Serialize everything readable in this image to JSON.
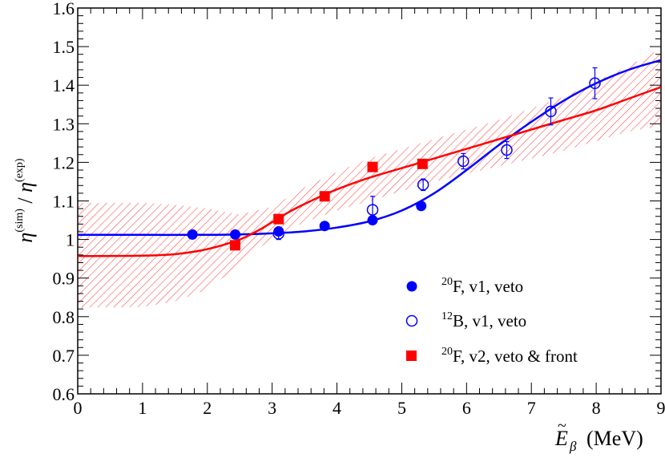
{
  "chart_data": {
    "type": "scatter",
    "xlabel": "Ẽβ (MeV)",
    "xlabel_parts": {
      "symbol": "E",
      "tilde": "~",
      "sub": "β",
      "unit": "(MeV)"
    },
    "ylabel": "η(sim) / η(exp)",
    "ylabel_parts": {
      "eta": "η",
      "sup_sim": "(sim)",
      "slash": "/",
      "sup_exp": "(exp)"
    },
    "xlim": [
      0,
      9
    ],
    "ylim": [
      0.6,
      1.6
    ],
    "xticks": [
      0,
      1,
      2,
      3,
      4,
      5,
      6,
      7,
      8,
      9
    ],
    "yticks": [
      0.6,
      0.7,
      0.8,
      0.9,
      1,
      1.1,
      1.2,
      1.3,
      1.4,
      1.5,
      1.6
    ],
    "ytick_labels": [
      "0.6",
      "0.7",
      "0.8",
      "0.9",
      "1",
      "1.1",
      "1.2",
      "1.3",
      "1.4",
      "1.5",
      "1.6"
    ],
    "series": [
      {
        "name": "20F, v1, veto",
        "legend": {
          "sup": "20",
          "text": "F, v1, veto"
        },
        "marker": "filled-circle",
        "color": "#0000ff",
        "points": [
          {
            "x": 1.77,
            "y": 1.013,
            "err": 0.004
          },
          {
            "x": 2.43,
            "y": 1.013,
            "err": 0.004
          },
          {
            "x": 3.1,
            "y": 1.021,
            "err": 0.004
          },
          {
            "x": 3.81,
            "y": 1.035,
            "err": 0.004
          },
          {
            "x": 4.55,
            "y": 1.05,
            "err": 0.005
          },
          {
            "x": 5.3,
            "y": 1.087,
            "err": 0.005
          }
        ]
      },
      {
        "name": "12B, v1, veto",
        "legend": {
          "sup": "12",
          "text": "B, v1, veto"
        },
        "marker": "open-circle",
        "color": "#0000ff",
        "points": [
          {
            "x": 3.1,
            "y": 1.015,
            "err": 0.015
          },
          {
            "x": 4.55,
            "y": 1.077,
            "err": 0.035
          },
          {
            "x": 5.33,
            "y": 1.142,
            "err": 0.015
          },
          {
            "x": 5.95,
            "y": 1.203,
            "err": 0.02
          },
          {
            "x": 6.62,
            "y": 1.232,
            "err": 0.022
          },
          {
            "x": 7.3,
            "y": 1.332,
            "err": 0.035
          },
          {
            "x": 7.98,
            "y": 1.405,
            "err": 0.04
          }
        ]
      },
      {
        "name": "20F, v2, veto & front",
        "legend": {
          "sup": "20",
          "text": "F, v2, veto & front"
        },
        "marker": "filled-square",
        "color": "#ff0000",
        "points": [
          {
            "x": 2.43,
            "y": 0.985,
            "err": 0.005
          },
          {
            "x": 3.1,
            "y": 1.053,
            "err": 0.005
          },
          {
            "x": 3.81,
            "y": 1.112,
            "err": 0.005
          },
          {
            "x": 4.55,
            "y": 1.188,
            "err": 0.005
          },
          {
            "x": 5.32,
            "y": 1.196,
            "err": 0.005
          }
        ]
      }
    ],
    "fits": [
      {
        "name": "blue-fit",
        "color": "#0000ff",
        "points": [
          [
            0,
            1.012
          ],
          [
            1,
            1.012
          ],
          [
            2,
            1.012
          ],
          [
            2.5,
            1.013
          ],
          [
            3,
            1.016
          ],
          [
            3.5,
            1.021
          ],
          [
            4,
            1.031
          ],
          [
            4.5,
            1.047
          ],
          [
            5,
            1.075
          ],
          [
            5.5,
            1.12
          ],
          [
            6,
            1.18
          ],
          [
            6.5,
            1.245
          ],
          [
            7,
            1.305
          ],
          [
            7.5,
            1.36
          ],
          [
            8,
            1.405
          ],
          [
            8.5,
            1.44
          ],
          [
            9,
            1.465
          ]
        ]
      },
      {
        "name": "red-fit",
        "color": "#ff0000",
        "points": [
          [
            0,
            0.957
          ],
          [
            1,
            0.958
          ],
          [
            1.5,
            0.962
          ],
          [
            2,
            0.975
          ],
          [
            2.5,
            1.0
          ],
          [
            2.8,
            1.025
          ],
          [
            3,
            1.045
          ],
          [
            3.3,
            1.075
          ],
          [
            3.6,
            1.1
          ],
          [
            4,
            1.13
          ],
          [
            4.5,
            1.16
          ],
          [
            5,
            1.185
          ],
          [
            5.5,
            1.21
          ],
          [
            6,
            1.235
          ],
          [
            6.5,
            1.26
          ],
          [
            7,
            1.285
          ],
          [
            7.5,
            1.31
          ],
          [
            8,
            1.335
          ],
          [
            8.5,
            1.365
          ],
          [
            9,
            1.395
          ]
        ]
      }
    ],
    "uncertainty_band": {
      "color": "#ff0000",
      "style": "hatched",
      "upper": [
        [
          0,
          1.095
        ],
        [
          1,
          1.095
        ],
        [
          1.5,
          1.09
        ],
        [
          2,
          1.08
        ],
        [
          2.5,
          1.065
        ],
        [
          3,
          1.085
        ],
        [
          3.5,
          1.135
        ],
        [
          4,
          1.175
        ],
        [
          4.5,
          1.21
        ],
        [
          5,
          1.235
        ],
        [
          5.5,
          1.26
        ],
        [
          6,
          1.285
        ],
        [
          6.5,
          1.31
        ],
        [
          7,
          1.34
        ],
        [
          7.5,
          1.37
        ],
        [
          8,
          1.41
        ],
        [
          8.5,
          1.45
        ],
        [
          9,
          1.495
        ]
      ],
      "lower": [
        [
          0,
          0.823
        ],
        [
          1,
          0.825
        ],
        [
          1.5,
          0.84
        ],
        [
          2,
          0.87
        ],
        [
          2.5,
          0.935
        ],
        [
          3,
          1.005
        ],
        [
          3.5,
          1.045
        ],
        [
          4,
          1.075
        ],
        [
          4.5,
          1.1
        ],
        [
          5,
          1.125
        ],
        [
          5.5,
          1.15
        ],
        [
          6,
          1.17
        ],
        [
          6.5,
          1.19
        ],
        [
          7,
          1.21
        ],
        [
          7.5,
          1.23
        ],
        [
          8,
          1.255
        ],
        [
          8.5,
          1.28
        ],
        [
          9,
          1.295
        ]
      ]
    },
    "legend_position": "bottom-right"
  }
}
